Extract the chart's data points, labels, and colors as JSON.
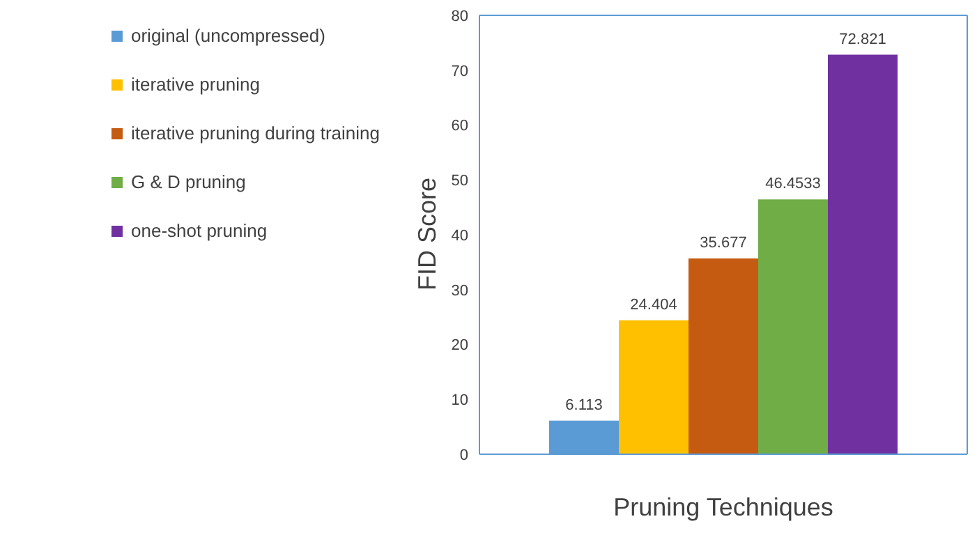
{
  "chart_data": {
    "type": "bar",
    "xlabel": "Pruning Techniques",
    "ylabel": "FID Score",
    "categories": [
      null
    ],
    "series": [
      {
        "name": "original (uncompressed)",
        "color": "#5b9bd5",
        "values": [
          6.113
        ]
      },
      {
        "name": "iterative pruning",
        "color": "#ffc000",
        "values": [
          24.404
        ]
      },
      {
        "name": "iterative pruning during training",
        "color": "#c55a11",
        "values": [
          35.677
        ]
      },
      {
        "name": "G & D pruning",
        "color": "#70ad47",
        "values": [
          46.4533
        ]
      },
      {
        "name": "one-shot pruning",
        "color": "#7030a0",
        "values": [
          72.821
        ]
      }
    ],
    "ylim": [
      0,
      80
    ],
    "yticks": [
      0,
      10,
      20,
      30,
      40,
      50,
      60,
      70,
      80
    ],
    "grid": false,
    "legend": "top left",
    "data_labels": true
  }
}
